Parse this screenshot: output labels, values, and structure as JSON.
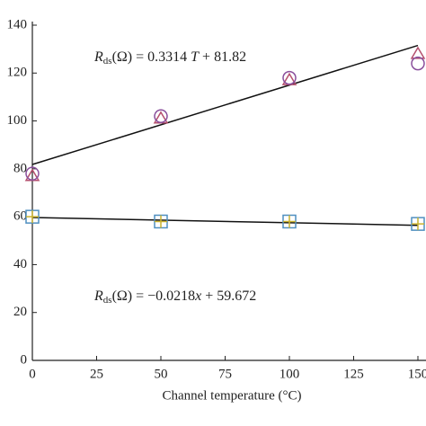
{
  "chart_data": {
    "type": "scatter",
    "xlabel": "Channel temperature (°C)",
    "xlim": [
      0,
      150
    ],
    "xticks": [
      0,
      25,
      50,
      75,
      100,
      125,
      150
    ],
    "ylim": [
      0,
      140
    ],
    "yticks": [
      0,
      20,
      40,
      60,
      80,
      100,
      120,
      140
    ],
    "series": [
      {
        "marker": "triangle",
        "color": "#b5506e",
        "x": [
          0,
          50,
          100,
          150
        ],
        "values": [
          77,
          101,
          117,
          128
        ]
      },
      {
        "marker": "circle",
        "color": "#8a4f9c",
        "x": [
          0,
          50,
          100,
          150
        ],
        "values": [
          78,
          102,
          118,
          124
        ]
      },
      {
        "marker": "square",
        "color": "#4f8fc0",
        "x": [
          0,
          50,
          100,
          150
        ],
        "values": [
          60,
          58,
          58,
          57
        ]
      },
      {
        "marker": "plus",
        "color": "#c9b22e",
        "x": [
          0,
          50,
          100,
          150
        ],
        "values": [
          60,
          58,
          58,
          57
        ]
      }
    ],
    "fit_lines": [
      {
        "x": [
          0,
          150
        ],
        "values": [
          81.82,
          131.53
        ]
      },
      {
        "x": [
          0,
          150
        ],
        "values": [
          59.672,
          56.402
        ]
      }
    ],
    "annotations": [
      {
        "parts": [
          "R",
          "ds",
          "(Ω) = 0.3314 ",
          "T",
          " + 81.82"
        ]
      },
      {
        "parts": [
          "R",
          "ds",
          "(Ω) = −0.0218",
          "x",
          " + 59.672"
        ]
      }
    ]
  }
}
